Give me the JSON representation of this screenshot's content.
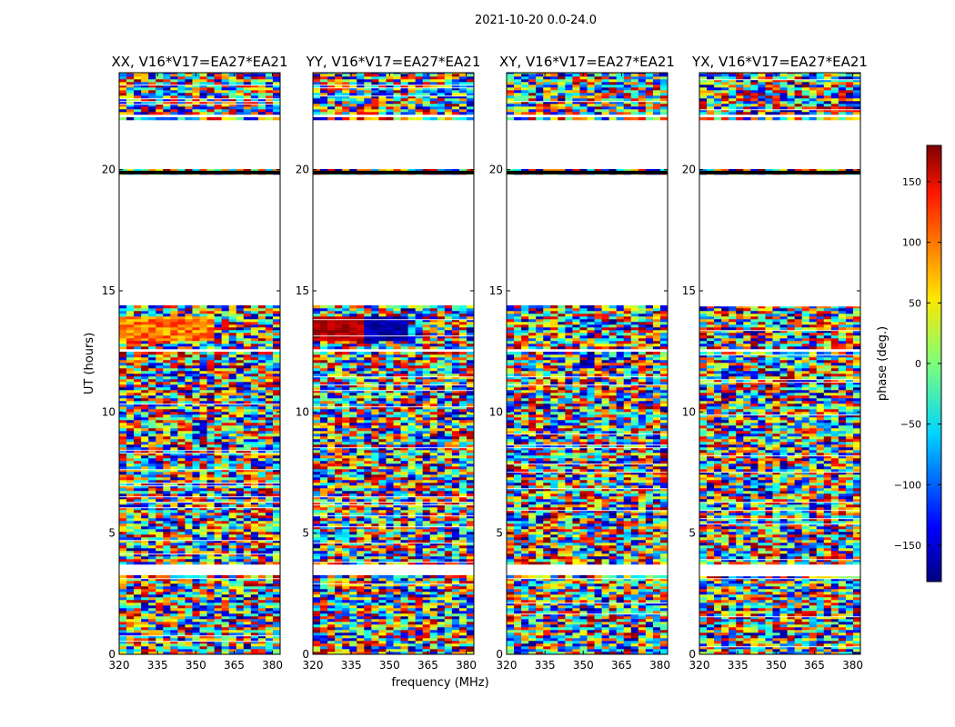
{
  "figure_title": "2021-10-20 0.0-24.0",
  "chart_data": [
    {
      "type": "heatmap",
      "title": "XX, V16*V17=EA27*EA21",
      "xlabel": "frequency (MHz)",
      "ylabel": "UT (hours)",
      "xlim": [
        320,
        383
      ],
      "ylim": [
        0,
        24
      ],
      "xticks": [
        320,
        335,
        350,
        365,
        380
      ],
      "yticks": [
        0,
        5,
        10,
        15,
        20
      ],
      "value_label": "phase (deg.)"
    },
    {
      "type": "heatmap",
      "title": "YY, V16*V17=EA27*EA21",
      "xlabel": "frequency (MHz)",
      "ylabel": "UT (hours)",
      "xlim": [
        320,
        383
      ],
      "ylim": [
        0,
        24
      ],
      "xticks": [
        320,
        335,
        350,
        365,
        380
      ],
      "yticks": [
        0,
        5,
        10,
        15,
        20
      ],
      "value_label": "phase (deg.)"
    },
    {
      "type": "heatmap",
      "title": "XY, V16*V17=EA27*EA21",
      "xlabel": "frequency (MHz)",
      "ylabel": "UT (hours)",
      "xlim": [
        320,
        383
      ],
      "ylim": [
        0,
        24
      ],
      "xticks": [
        320,
        335,
        350,
        365,
        380
      ],
      "yticks": [
        0,
        5,
        10,
        15,
        20
      ],
      "value_label": "phase (deg.)"
    },
    {
      "type": "heatmap",
      "title": "YX, V16*V17=EA27*EA21",
      "xlabel": "frequency (MHz)",
      "ylabel": "UT (hours)",
      "xlim": [
        320,
        383
      ],
      "ylim": [
        0,
        24
      ],
      "xticks": [
        320,
        335,
        350,
        365,
        380
      ],
      "yticks": [
        0,
        5,
        10,
        15,
        20
      ],
      "value_label": "phase (deg.)"
    }
  ],
  "colorbar": {
    "label": "phase (deg.)",
    "range": [
      -180,
      180
    ],
    "ticks": [
      150,
      100,
      50,
      0,
      -50,
      -100,
      -150
    ],
    "colormap": "jet"
  },
  "shared_axis_labels": {
    "xlabel": "frequency (MHz)",
    "ylabel": "UT (hours)"
  },
  "data_gaps_ut_hours": [
    [
      22.0,
      19.95
    ],
    [
      19.8,
      14.3
    ],
    [
      3.6,
      3.2
    ],
    [
      12.5,
      12.4
    ]
  ],
  "flagged_line_ut_hours": 19.88,
  "colors": {
    "background": "#ffffff",
    "axis": "#000000"
  }
}
